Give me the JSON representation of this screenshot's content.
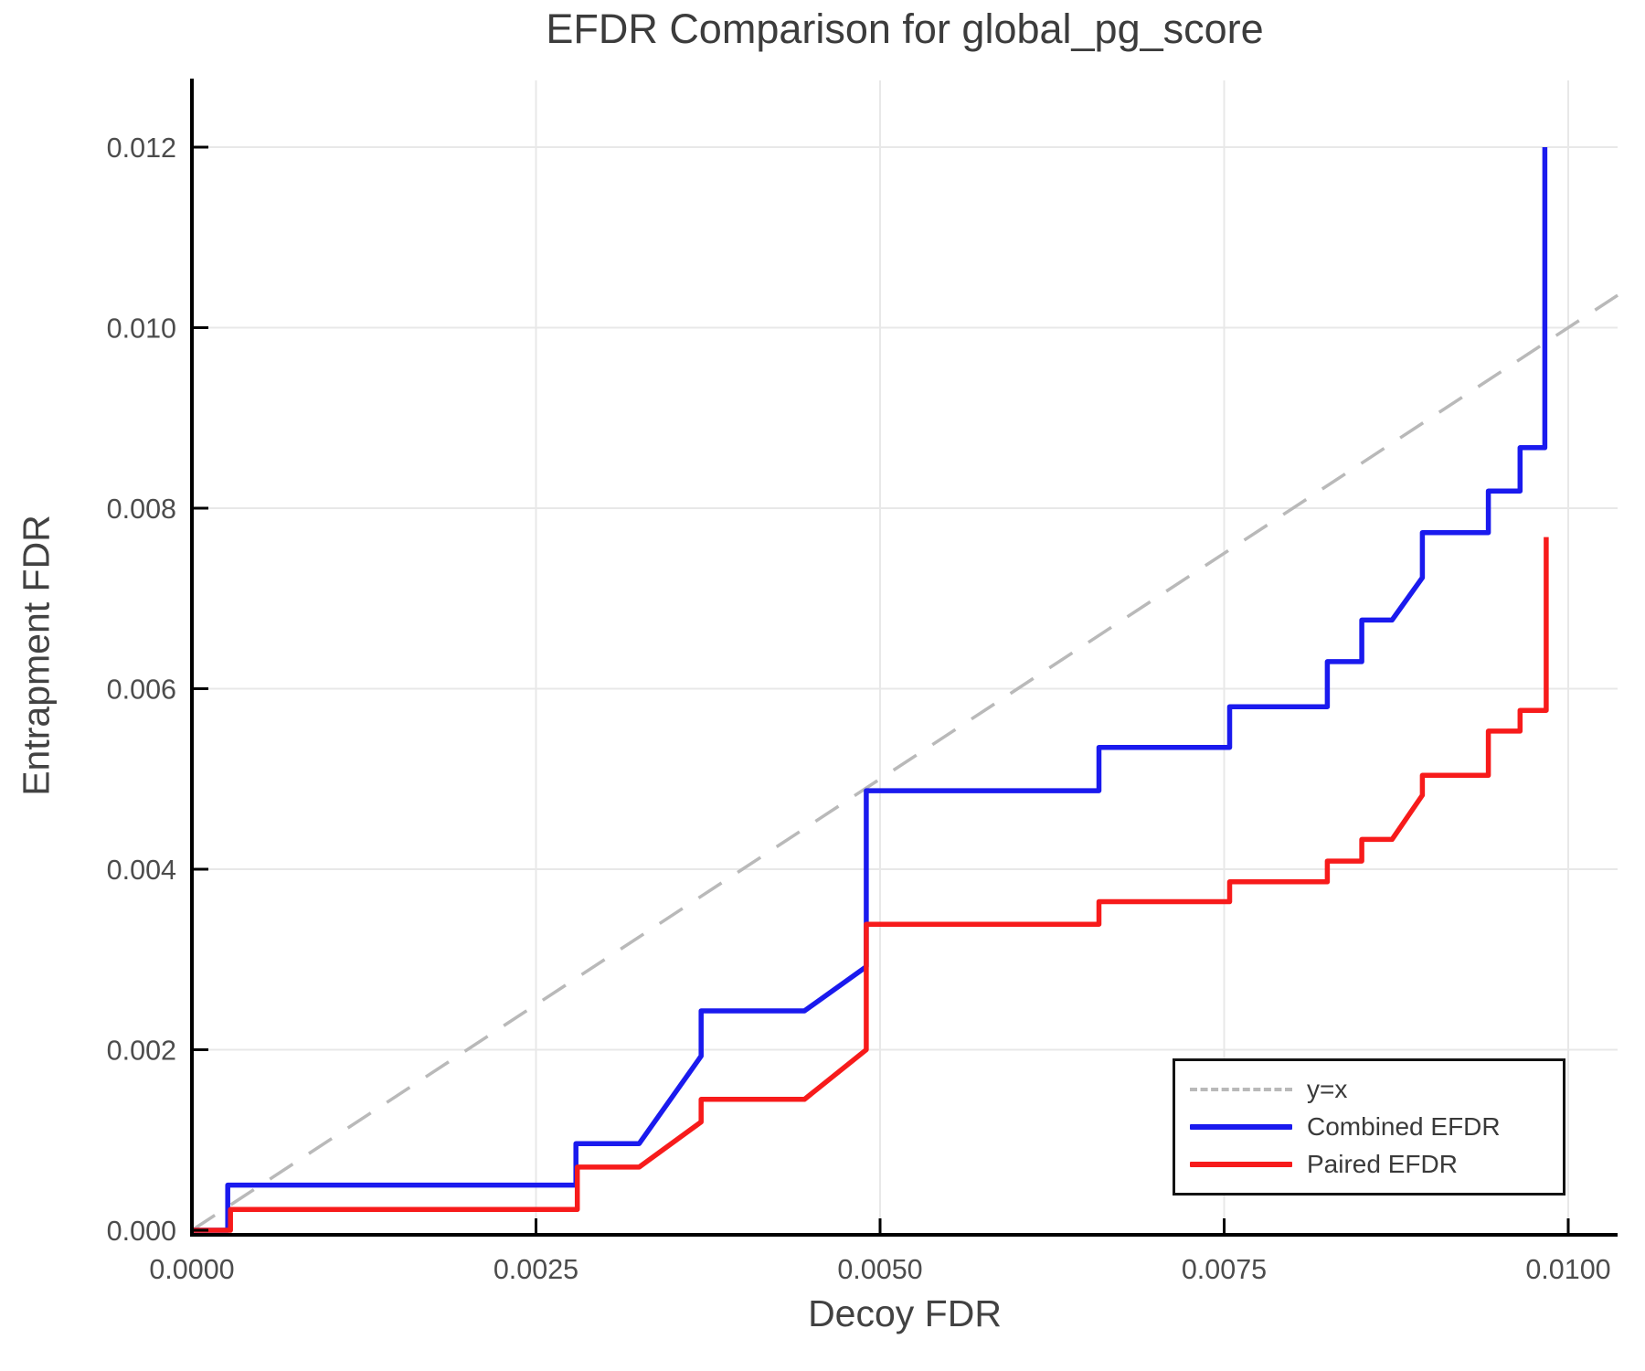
{
  "title": "EFDR Comparison for global_pg_score",
  "chart_data": {
    "type": "line",
    "title": "EFDR Comparison for global_pg_score",
    "xlabel": "Decoy FDR",
    "ylabel": "Entrapment FDR",
    "xlim": [
      0,
      0.0104
    ],
    "ylim": [
      0,
      0.0127
    ],
    "grid": true,
    "legend_position": "lower right",
    "grid_color": "#e8e8e8",
    "spine_color": "#000000",
    "xticks": [
      {
        "value": 0.0,
        "label": "0.0000"
      },
      {
        "value": 0.0025,
        "label": "0.0025"
      },
      {
        "value": 0.005,
        "label": "0.0050"
      },
      {
        "value": 0.0075,
        "label": "0.0075"
      },
      {
        "value": 0.01,
        "label": "0.0100"
      }
    ],
    "yticks": [
      {
        "value": 0.0,
        "label": "0.000"
      },
      {
        "value": 0.002,
        "label": "0.002"
      },
      {
        "value": 0.004,
        "label": "0.004"
      },
      {
        "value": 0.006,
        "label": "0.006"
      },
      {
        "value": 0.008,
        "label": "0.008"
      },
      {
        "value": 0.01,
        "label": "0.010"
      },
      {
        "value": 0.012,
        "label": "0.012"
      }
    ],
    "reference_line": {
      "label": "y=x",
      "style": "dashed",
      "color": "#b9b9b9",
      "from": [
        0,
        0
      ],
      "to": [
        0.010359,
        0.010359
      ]
    },
    "series": [
      {
        "name": "Combined EFDR",
        "color": "#1a1aee",
        "points": [
          [
            0,
            0
          ],
          [
            0.00026,
            0
          ],
          [
            0.00026,
            0.0005
          ],
          [
            0.00279,
            0.0005
          ],
          [
            0.00279,
            0.00096
          ],
          [
            0.00325,
            0.00096
          ],
          [
            0.0037,
            0.00193
          ],
          [
            0.0037,
            0.00243
          ],
          [
            0.00445,
            0.00243
          ],
          [
            0.0049,
            0.00292
          ],
          [
            0.0049,
            0.00487
          ],
          [
            0.00659,
            0.00487
          ],
          [
            0.00659,
            0.00535
          ],
          [
            0.00754,
            0.00535
          ],
          [
            0.00754,
            0.0058
          ],
          [
            0.00825,
            0.0058
          ],
          [
            0.00825,
            0.0063
          ],
          [
            0.0085,
            0.0063
          ],
          [
            0.0085,
            0.00676
          ],
          [
            0.00872,
            0.00676
          ],
          [
            0.00894,
            0.00723
          ],
          [
            0.00894,
            0.00773
          ],
          [
            0.00942,
            0.00773
          ],
          [
            0.00942,
            0.00819
          ],
          [
            0.00965,
            0.00819
          ],
          [
            0.00965,
            0.00867
          ],
          [
            0.00983,
            0.00867
          ],
          [
            0.00983,
            0.012
          ]
        ]
      },
      {
        "name": "Paired EFDR",
        "color": "#f71b1b",
        "points": [
          [
            0,
            0
          ],
          [
            0.00028,
            0
          ],
          [
            0.00028,
            0.00023
          ],
          [
            0.0028,
            0.00023
          ],
          [
            0.0028,
            0.0007
          ],
          [
            0.00325,
            0.0007
          ],
          [
            0.0037,
            0.0012
          ],
          [
            0.0037,
            0.00145
          ],
          [
            0.00445,
            0.00145
          ],
          [
            0.0049,
            0.002
          ],
          [
            0.0049,
            0.00339
          ],
          [
            0.00659,
            0.00339
          ],
          [
            0.00659,
            0.00364
          ],
          [
            0.00754,
            0.00364
          ],
          [
            0.00754,
            0.00386
          ],
          [
            0.00825,
            0.00386
          ],
          [
            0.00825,
            0.00409
          ],
          [
            0.0085,
            0.00409
          ],
          [
            0.0085,
            0.00433
          ],
          [
            0.00872,
            0.00433
          ],
          [
            0.00894,
            0.00482
          ],
          [
            0.00894,
            0.00504
          ],
          [
            0.00942,
            0.00504
          ],
          [
            0.00942,
            0.00553
          ],
          [
            0.00965,
            0.00553
          ],
          [
            0.00965,
            0.00576
          ],
          [
            0.00984,
            0.00576
          ],
          [
            0.00984,
            0.00768
          ]
        ]
      }
    ]
  },
  "legend": {
    "entries": [
      "y=x",
      "Combined EFDR",
      "Paired EFDR"
    ]
  }
}
